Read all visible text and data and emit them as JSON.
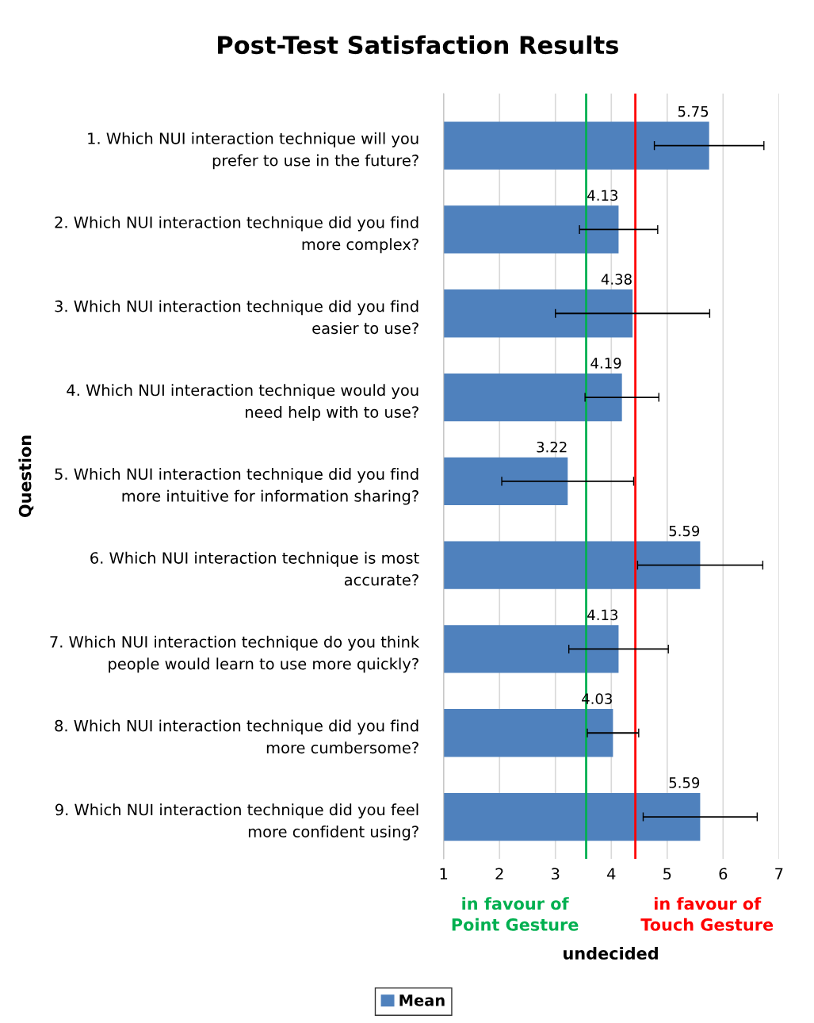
{
  "chart_data": {
    "type": "bar",
    "orientation": "horizontal",
    "title": "Post-Test Satisfaction Results",
    "ylabel": "Question",
    "categories": [
      "1. Which NUI interaction technique will you\nprefer to use in the future?",
      "2. Which NUI interaction technique did you find\nmore complex?",
      "3. Which NUI interaction technique did you find\neasier to use?",
      "4. Which NUI interaction technique would you\nneed help with to use?",
      "5. Which NUI interaction technique did you find\nmore intuitive for information sharing?",
      "6. Which NUI interaction technique is most\naccurate?",
      "7. Which NUI interaction technique do you think\npeople would learn to use more quickly?",
      "8. Which NUI interaction technique did you find\nmore cumbersome?",
      "9. Which NUI interaction technique did you feel\nmore confident using?"
    ],
    "series": [
      {
        "name": "Mean",
        "color": "#4f81bd",
        "values": [
          5.75,
          4.13,
          4.38,
          4.19,
          3.22,
          5.59,
          4.13,
          4.03,
          5.59
        ],
        "errors": [
          0.98,
          0.7,
          1.38,
          0.66,
          1.18,
          1.12,
          0.89,
          0.46,
          1.02
        ]
      }
    ],
    "data_labels": true,
    "xlim": [
      1,
      7
    ],
    "xticks": [
      1,
      2,
      3,
      4,
      5,
      6,
      7
    ],
    "grid": "x",
    "legend": "bottom",
    "ref_lines": [
      {
        "axis": "x",
        "value": 3.55,
        "label": "in favour of\nPoint Gesture",
        "color": "#00b050"
      },
      {
        "axis": "x",
        "value": 4.43,
        "label": "in favour of\nTouch Gesture",
        "color": "#ff0000"
      }
    ],
    "annotations": [
      "undecided"
    ]
  }
}
